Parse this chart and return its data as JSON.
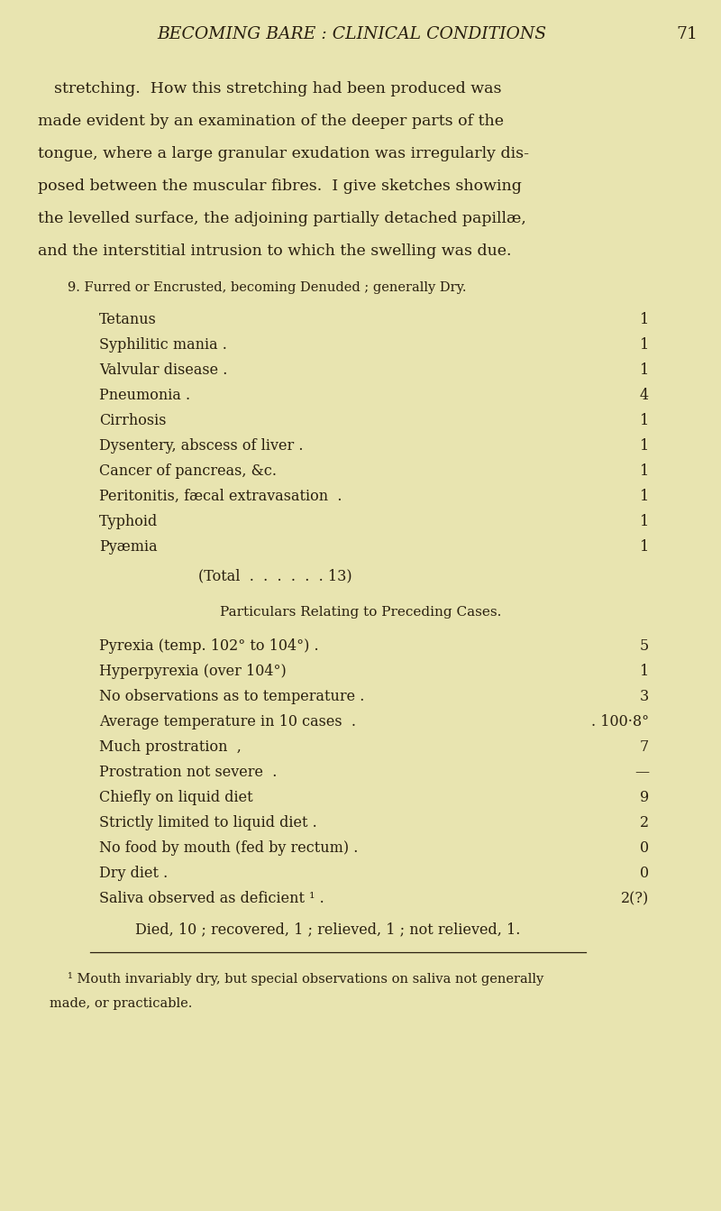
{
  "bg_color": "#e8e4b0",
  "text_color": "#2a2010",
  "page_width": 8.0,
  "page_height": 13.43,
  "header_title": "BECOMING BARE : CLINICAL CONDITIONS",
  "header_page": "71",
  "para_lines": [
    "stretching.  How this stretching had been produced was",
    "made evident by an examination of the deeper parts of the",
    "tongue, where a large granular exudation was irregularly dis-",
    "posed between the muscular fibres.  I give sketches showing",
    "the levelled surface, the adjoining partially detached papillæ,",
    "and the interstitial intrusion to which the swelling was due."
  ],
  "section_heading": "9. Furred or Encrusted, becoming Denuded ; generally Dry.",
  "conditions": [
    [
      "Tetanus",
      "1"
    ],
    [
      "Syphilitic mania .",
      "1"
    ],
    [
      "Valvular disease .",
      "1"
    ],
    [
      "Pneumonia .",
      "4"
    ],
    [
      "Cirrhosis",
      "1"
    ],
    [
      "Dysentery, abscess of liver .",
      "1"
    ],
    [
      "Cancer of pancreas, &c.",
      "1"
    ],
    [
      "Peritonitis, fæcal extravasation  .",
      "1"
    ],
    [
      "Typhoid",
      "1"
    ],
    [
      "Pyæmia",
      "1"
    ]
  ],
  "total_line": "(Total  .  .  .  .  .  . 13)",
  "particulars_heading": "Particulars Relating to Preceding Cases.",
  "particulars": [
    [
      "Pyrexia (temp. 102° to 104°) .",
      "5"
    ],
    [
      "Hyperpyrexia (over 104°)",
      "1"
    ],
    [
      "No observations as to temperature .",
      "3"
    ],
    [
      "Average temperature in 10 cases  .",
      ". 100·8°"
    ],
    [
      "Much prostration  ,",
      "7"
    ],
    [
      "Prostration not severe  .",
      "—"
    ],
    [
      "Chiefly on liquid diet",
      "9"
    ],
    [
      "Strictly limited to liquid diet .",
      "2"
    ],
    [
      "No food by mouth (fed by rectum) .",
      "0"
    ],
    [
      "Dry diet .",
      "0"
    ],
    [
      "Saliva observed as deficient ¹ .",
      "2(?)"
    ]
  ],
  "outcomes_line": "Died, 10 ; recovered, 1 ; relieved, 1 ; not relieved, 1.",
  "footnote_line1": "¹ Mouth invariably dry, but special observations on saliva not generally",
  "footnote_line2": "made, or practicable."
}
